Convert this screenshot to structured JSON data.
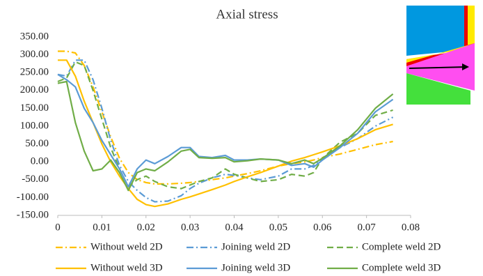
{
  "chart_data": {
    "type": "line",
    "title": "Axial stress",
    "x": [
      0,
      0.002,
      0.004,
      0.006,
      0.008,
      0.01,
      0.012,
      0.014,
      0.016,
      0.018,
      0.02,
      0.022,
      0.025,
      0.028,
      0.03,
      0.032,
      0.035,
      0.038,
      0.04,
      0.043,
      0.046,
      0.05,
      0.053,
      0.056,
      0.058,
      0.06,
      0.064,
      0.068,
      0.072,
      0.076
    ],
    "series": [
      {
        "name": "Without weld 2D",
        "color": "#ffc000",
        "style": "dash-dot",
        "values": [
          310,
          310,
          305,
          270,
          210,
          140,
          70,
          10,
          -30,
          -50,
          -58,
          -62,
          -62,
          -60,
          -58,
          -55,
          -50,
          -45,
          -40,
          -33,
          -25,
          -12,
          -5,
          0,
          5,
          12,
          22,
          35,
          48,
          57
        ]
      },
      {
        "name": "Joining weld 2D",
        "color": "#5b9bd5",
        "style": "dash-dot",
        "values": [
          245,
          240,
          285,
          285,
          230,
          150,
          60,
          -10,
          -55,
          -80,
          -100,
          -112,
          -110,
          -95,
          -75,
          -60,
          -45,
          -35,
          -38,
          -45,
          -50,
          -40,
          -20,
          -20,
          -10,
          10,
          40,
          65,
          100,
          125
        ]
      },
      {
        "name": "Complete weld 2D",
        "color": "#70ad47",
        "style": "dash",
        "values": [
          225,
          235,
          280,
          270,
          200,
          120,
          40,
          -20,
          -70,
          -50,
          -40,
          -55,
          -70,
          -75,
          -65,
          -55,
          -45,
          -20,
          -35,
          -45,
          -55,
          -50,
          -35,
          -40,
          -30,
          10,
          55,
          80,
          130,
          145
        ]
      },
      {
        "name": "Without weld 3D",
        "color": "#ffc000",
        "style": "solid",
        "values": [
          285,
          285,
          240,
          170,
          110,
          50,
          0,
          -40,
          -75,
          -105,
          -120,
          -125,
          -118,
          -105,
          -98,
          -90,
          -78,
          -65,
          -55,
          -42,
          -30,
          -12,
          2,
          12,
          20,
          28,
          45,
          65,
          90,
          105
        ]
      },
      {
        "name": "Joining weld 3D",
        "color": "#5b9bd5",
        "style": "solid",
        "values": [
          245,
          230,
          210,
          150,
          110,
          60,
          20,
          -20,
          -70,
          -20,
          5,
          -5,
          15,
          40,
          40,
          15,
          12,
          18,
          5,
          5,
          8,
          5,
          -10,
          -5,
          -15,
          5,
          40,
          80,
          140,
          175
        ]
      },
      {
        "name": "Complete weld 3D",
        "color": "#70ad47",
        "style": "solid",
        "values": [
          220,
          225,
          110,
          30,
          -25,
          -20,
          5,
          -30,
          -80,
          -30,
          -20,
          -25,
          0,
          30,
          35,
          12,
          10,
          12,
          0,
          3,
          8,
          5,
          -5,
          5,
          -5,
          10,
          45,
          90,
          150,
          190
        ]
      }
    ],
    "xlim": [
      0,
      0.08
    ],
    "xticks": [
      0,
      0.01,
      0.02,
      0.03,
      0.04,
      0.05,
      0.06,
      0.07,
      0.08
    ],
    "ylim": [
      -150,
      350
    ],
    "yticks": [
      {
        "value": -150,
        "label": "-150.00"
      },
      {
        "value": -100,
        "label": "-100.00"
      },
      {
        "value": -50,
        "label": "-50.00"
      },
      {
        "value": 0,
        "label": "0.00"
      },
      {
        "value": 50,
        "label": "50.00"
      },
      {
        "value": 100,
        "label": "100.00"
      },
      {
        "value": 150,
        "label": "150.00"
      },
      {
        "value": 200,
        "label": "200.00"
      },
      {
        "value": 250,
        "label": "250.00"
      },
      {
        "value": 300,
        "label": "300.00"
      },
      {
        "value": 350,
        "label": "350.00"
      }
    ],
    "grid": false
  }
}
